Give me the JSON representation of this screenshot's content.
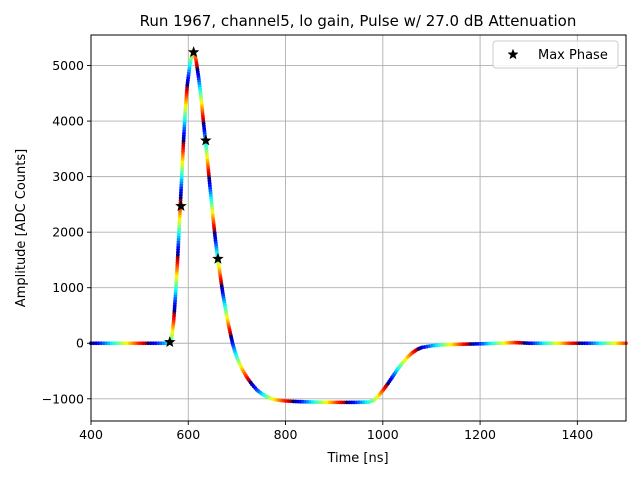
{
  "chart_data": {
    "type": "scatter",
    "title": "Run 1967, channel5, lo gain, Pulse w/ 27.0 dB Attenuation",
    "xlabel": "Time [ns]",
    "ylabel": "Amplitude [ADC Counts]",
    "xlim": [
      400,
      1500
    ],
    "ylim": [
      -1400,
      5550
    ],
    "x_ticks": [
      400,
      600,
      800,
      1000,
      1200,
      1400
    ],
    "y_ticks": [
      -1000,
      0,
      1000,
      2000,
      3000,
      4000,
      5000
    ],
    "y_tick_labels": [
      "−1000",
      "0",
      "1000",
      "2000",
      "3000",
      "4000",
      "5000"
    ],
    "grid": true,
    "legend": {
      "position": "top-right",
      "entries": [
        "Max Phase"
      ]
    },
    "colormap": "jet",
    "series": [
      {
        "name": "pulse",
        "kind": "colored-dots",
        "waveform": [
          [
            400,
            0
          ],
          [
            555,
            0
          ],
          [
            562,
            20
          ],
          [
            566,
            100
          ],
          [
            570,
            400
          ],
          [
            574,
            900
          ],
          [
            578,
            1500
          ],
          [
            582,
            2200
          ],
          [
            586,
            2900
          ],
          [
            590,
            3600
          ],
          [
            594,
            4200
          ],
          [
            598,
            4650
          ],
          [
            603,
            5000
          ],
          [
            607,
            5180
          ],
          [
            611,
            5250
          ],
          [
            616,
            5100
          ],
          [
            621,
            4800
          ],
          [
            626,
            4450
          ],
          [
            631,
            4000
          ],
          [
            636,
            3600
          ],
          [
            641,
            3150
          ],
          [
            646,
            2700
          ],
          [
            651,
            2250
          ],
          [
            656,
            1850
          ],
          [
            661,
            1500
          ],
          [
            666,
            1200
          ],
          [
            671,
            900
          ],
          [
            676,
            650
          ],
          [
            681,
            400
          ],
          [
            686,
            200
          ],
          [
            691,
            0
          ],
          [
            696,
            -150
          ],
          [
            701,
            -280
          ],
          [
            711,
            -470
          ],
          [
            721,
            -620
          ],
          [
            731,
            -740
          ],
          [
            741,
            -840
          ],
          [
            751,
            -910
          ],
          [
            761,
            -960
          ],
          [
            771,
            -1000
          ],
          [
            781,
            -1020
          ],
          [
            801,
            -1040
          ],
          [
            821,
            -1050
          ],
          [
            861,
            -1060
          ],
          [
            901,
            -1065
          ],
          [
            941,
            -1065
          ],
          [
            971,
            -1060
          ],
          [
            981,
            -1030
          ],
          [
            991,
            -950
          ],
          [
            1001,
            -840
          ],
          [
            1011,
            -720
          ],
          [
            1021,
            -590
          ],
          [
            1031,
            -460
          ],
          [
            1041,
            -350
          ],
          [
            1051,
            -250
          ],
          [
            1061,
            -170
          ],
          [
            1071,
            -110
          ],
          [
            1081,
            -75
          ],
          [
            1101,
            -45
          ],
          [
            1121,
            -30
          ],
          [
            1151,
            -20
          ],
          [
            1201,
            -10
          ],
          [
            1241,
            0
          ],
          [
            1271,
            12
          ],
          [
            1301,
            0
          ],
          [
            1351,
            0
          ],
          [
            1500,
            0
          ]
        ]
      },
      {
        "name": "Max Phase",
        "kind": "stars",
        "marker": "star",
        "color": "#000000",
        "x": [
          562,
          585,
          611,
          636,
          661
        ],
        "y": [
          20,
          2470,
          5240,
          3650,
          1520
        ]
      }
    ]
  }
}
